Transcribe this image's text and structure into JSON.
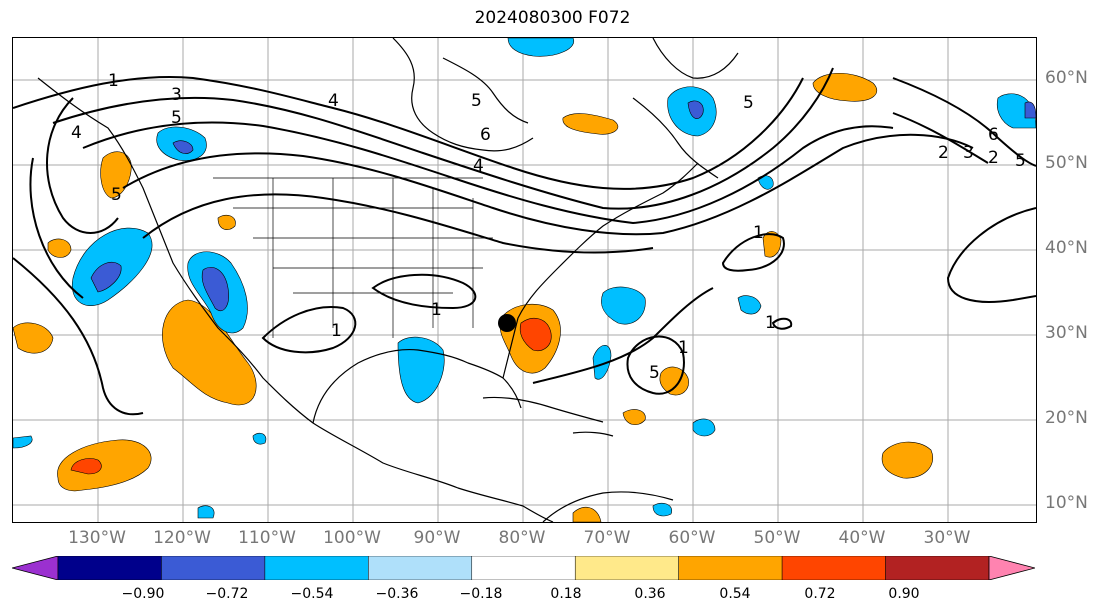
{
  "title": "2024080300 F072",
  "map": {
    "latitude_labels": [
      "60°N",
      "50°N",
      "40°N",
      "30°N",
      "20°N",
      "10°N"
    ],
    "longitude_labels": [
      "130°W",
      "120°W",
      "110°W",
      "100°W",
      "90°W",
      "80°W",
      "70°W",
      "60°W",
      "50°W",
      "40°W",
      "30°W"
    ],
    "contour_labels": [
      "1",
      "3",
      "5",
      "4",
      "5",
      "4",
      "5",
      "6",
      "4",
      "5",
      "6",
      "2",
      "3",
      "2",
      "5",
      "1",
      "1",
      "1",
      "1",
      "1",
      "5"
    ],
    "marker": "black-dot-marker",
    "colors": {
      "land_outline": "#000000",
      "grid": "#aaaaaa",
      "contour": "#000000"
    }
  },
  "colorbar": {
    "ticks": [
      "−0.90",
      "−0.72",
      "−0.54",
      "−0.36",
      "−0.18",
      "0.18",
      "0.36",
      "0.54",
      "0.72",
      "0.90"
    ],
    "colors": [
      "#9b30d0",
      "#00008b",
      "#3b5bd5",
      "#00bfff",
      "#afe0fa",
      "#ffffff",
      "#ffe98a",
      "#ffa500",
      "#ff4500",
      "#b22222",
      "#ff83b0"
    ]
  }
}
